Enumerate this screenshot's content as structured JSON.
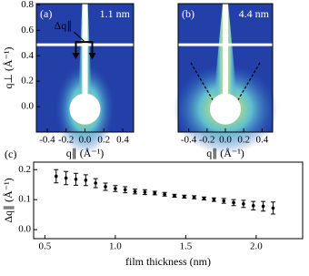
{
  "chart_data": [
    {
      "type": "image",
      "label": "(a)",
      "annotation": "1.1 nm",
      "arrow_label": "Δq∥",
      "xlabel": "q∥ (Å⁻¹)",
      "ylabel": "q⊥ (Å⁻¹)",
      "xlim": [
        -0.515,
        0.515
      ],
      "ylim": [
        -0.2,
        0.81
      ],
      "xticks": [
        -0.4,
        -0.2,
        {
          "value": 0,
          "label": "0.0"
        },
        0.2,
        0.4
      ],
      "yticks": [
        {
          "value": 0,
          "label": "0.0"
        },
        0.2,
        0.4,
        0.6,
        0.8
      ]
    },
    {
      "type": "image",
      "label": "(b)",
      "annotation": "4.4 nm",
      "xlabel": "q∥ (Å⁻¹)",
      "xlim": [
        -0.515,
        0.515
      ],
      "ylim": [
        -0.2,
        0.81
      ],
      "xticks": [
        -0.4,
        -0.2,
        {
          "value": 0,
          "label": "0.0"
        },
        0.2,
        0.4
      ]
    },
    {
      "type": "errorbar",
      "label": "(c)",
      "xlabel": "film thickness (nm)",
      "ylabel": "Δq∥ (Å⁻¹)",
      "xlim": [
        0.42,
        2.33
      ],
      "ylim": [
        -0.03,
        0.225
      ],
      "xticks": [
        0.5,
        {
          "value": 1,
          "label": "1.0"
        },
        1.5,
        {
          "value": 2,
          "label": "2.0"
        }
      ],
      "yticks": [
        {
          "value": 0,
          "label": "0.0"
        },
        0.1,
        0.2
      ],
      "color": "#000000",
      "x": [
        0.58,
        0.65,
        0.72,
        0.79,
        0.86,
        0.93,
        1.0,
        1.07,
        1.14,
        1.21,
        1.28,
        1.35,
        1.42,
        1.49,
        1.56,
        1.63,
        1.7,
        1.77,
        1.84,
        1.91,
        1.98,
        2.05,
        2.12
      ],
      "values": [
        0.178,
        0.172,
        0.168,
        0.165,
        0.155,
        0.143,
        0.137,
        0.133,
        0.127,
        0.125,
        0.122,
        0.118,
        0.113,
        0.11,
        0.108,
        0.104,
        0.1,
        0.096,
        0.09,
        0.086,
        0.08,
        0.078,
        0.072
      ],
      "errors": [
        0.022,
        0.022,
        0.02,
        0.018,
        0.015,
        0.012,
        0.01,
        0.01,
        0.008,
        0.008,
        0.006,
        0.006,
        0.005,
        0.005,
        0.005,
        0.005,
        0.006,
        0.008,
        0.01,
        0.012,
        0.014,
        0.016,
        0.02
      ]
    }
  ]
}
